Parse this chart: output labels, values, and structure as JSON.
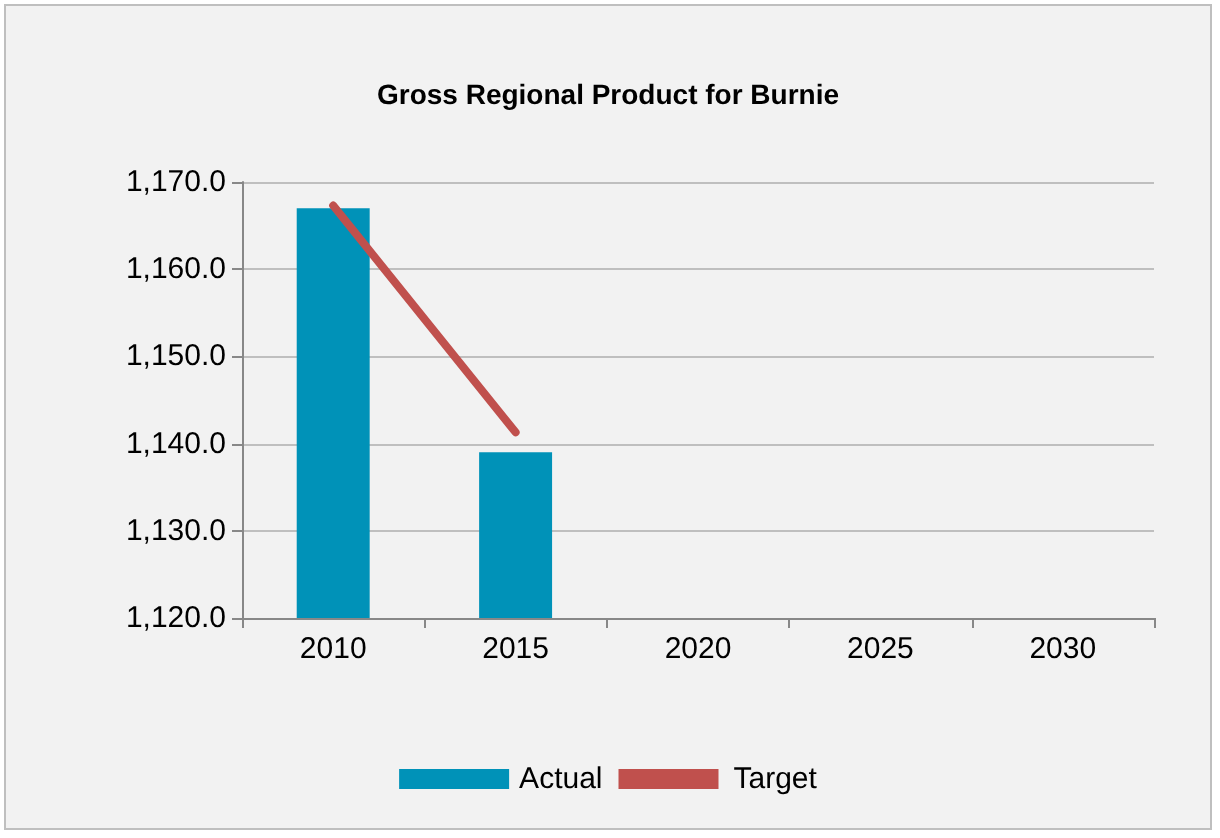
{
  "chart_data": {
    "type": "bar",
    "title": "Gross Regional Product for Burnie",
    "categories": [
      "2010",
      "2015",
      "2020",
      "2025",
      "2030"
    ],
    "series": [
      {
        "name": "Actual",
        "color": "#0092b8",
        "values": [
          1167,
          1139,
          null,
          null,
          null
        ]
      },
      {
        "name": "Target",
        "type": "line",
        "color": "#c0504d",
        "values": [
          1167.3,
          1141.3,
          null,
          null,
          null
        ]
      }
    ],
    "ylim": [
      1120,
      1170
    ],
    "yticks": [
      {
        "value": 1120,
        "label": "1,120.0"
      },
      {
        "value": 1130,
        "label": "1,130.0"
      },
      {
        "value": 1140,
        "label": "1,140.0"
      },
      {
        "value": 1150,
        "label": "1,150.0"
      },
      {
        "value": 1160,
        "label": "1,160.0"
      },
      {
        "value": 1170,
        "label": "1,170.0"
      }
    ],
    "grid": "y",
    "legend": "bottom",
    "marker": "none"
  }
}
